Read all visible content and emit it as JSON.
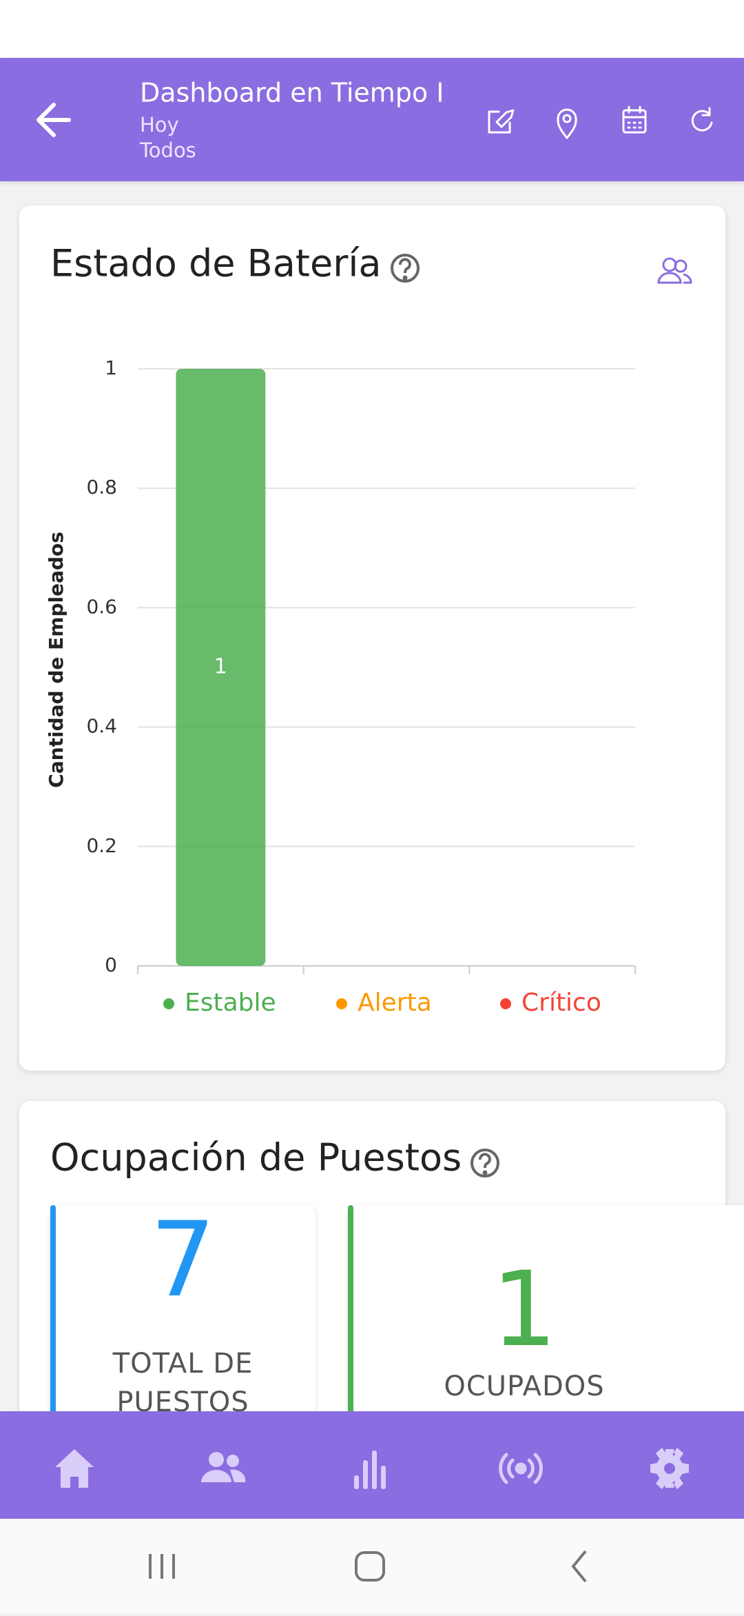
{
  "header": {
    "title": "Dashboard en Tiempo I",
    "subtitle": "Hoy",
    "filter": "Todos"
  },
  "chart_data": {
    "type": "bar",
    "title": "Estado de Batería",
    "ylabel": "Cantidad de Empleados",
    "categories": [
      "Estable",
      "Alerta",
      "Crítico"
    ],
    "values": [
      1,
      0,
      0
    ],
    "colors": [
      "#4caf50",
      "#ff9800",
      "#f44336"
    ],
    "ylim": [
      0,
      1
    ],
    "yticks": [
      0,
      0.2,
      0.4,
      0.6,
      0.8,
      1
    ],
    "grid": true,
    "legend": "bottom"
  },
  "occupancy": {
    "title": "Ocupación de Puestos",
    "tiles": [
      {
        "value": 7,
        "label": "TOTAL DE PUESTOS",
        "color": "#2196f3"
      },
      {
        "value": 1,
        "label": "OCUPADOS",
        "color": "#4caf50"
      }
    ]
  }
}
